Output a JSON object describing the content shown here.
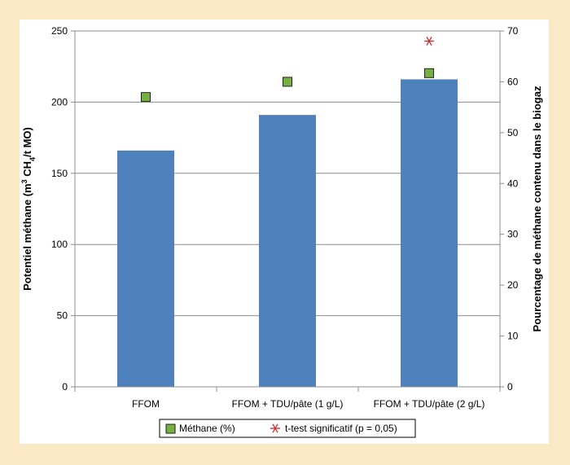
{
  "chart_data": {
    "type": "bar",
    "categories": [
      "FFOM",
      "FFOM + TDU/pâte (1 g/L)",
      "FFOM + TDU/pâte (2 g/L)"
    ],
    "series": [
      {
        "name": "",
        "axis": "left",
        "type": "bar",
        "values": [
          166,
          191,
          216
        ],
        "color": "#4f81bd"
      },
      {
        "name": "Méthane (%)",
        "axis": "right",
        "type": "scatter",
        "marker": "square",
        "values": [
          57,
          60,
          61.7
        ],
        "color": "#76b041"
      },
      {
        "name": "t-test significatif (p = 0,05)",
        "axis": "right",
        "type": "scatter",
        "marker": "asterisk",
        "values": [
          null,
          null,
          68
        ],
        "color": "#cc2a2a"
      }
    ],
    "y_left": {
      "label_main": "Potentiel méthane (m",
      "label_sup": "3",
      "label_mid": " CH",
      "label_sub": "4",
      "label_end": "/t MO)",
      "range": [
        0,
        250
      ],
      "ticks": [
        0,
        50,
        100,
        150,
        200,
        250
      ]
    },
    "y_right": {
      "label": "Pourcentage de méthane contenu dans le biogaz",
      "range": [
        0,
        70
      ],
      "ticks": [
        0,
        10,
        20,
        30,
        40,
        50,
        60,
        70
      ]
    },
    "grid": true,
    "legend_position": "bottom"
  }
}
